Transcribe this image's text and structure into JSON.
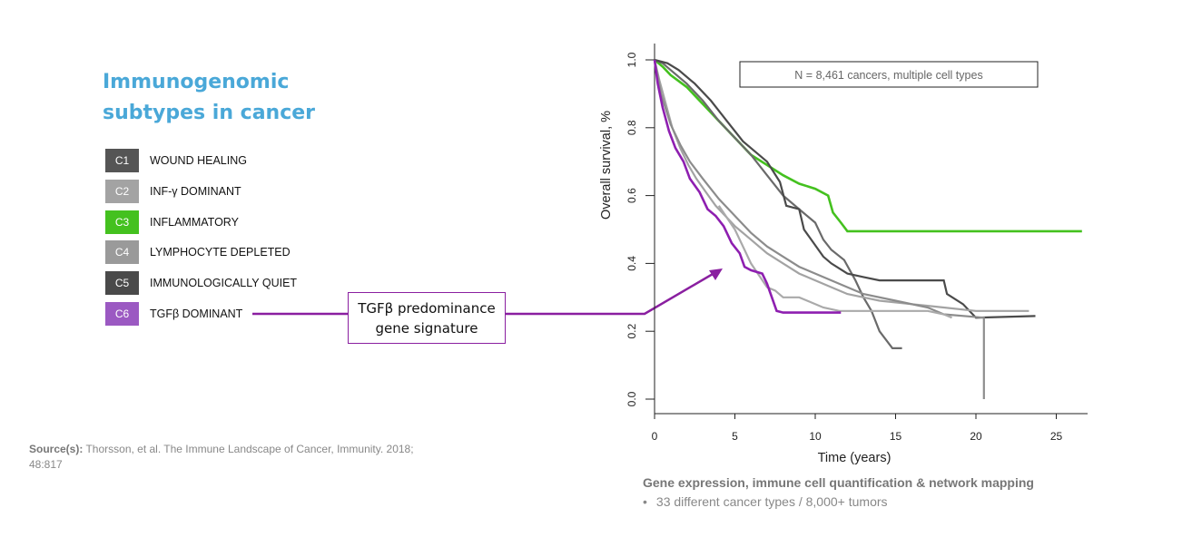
{
  "title": {
    "line1": "Immunogenomic",
    "line2": "subtypes in cancer"
  },
  "legend": [
    {
      "code": "C1",
      "label": "WOUND HEALING",
      "color": "#555555"
    },
    {
      "code": "C2",
      "label": "INF-γ DOMINANT",
      "color": "#a3a3a3"
    },
    {
      "code": "C3",
      "label": "INFLAMMATORY",
      "color": "#44c11f"
    },
    {
      "code": "C4",
      "label": "LYMPHOCYTE DEPLETED",
      "color": "#9a9a9a"
    },
    {
      "code": "C5",
      "label": "IMMUNOLOGICALLY QUIET",
      "color": "#4a4a4a"
    },
    {
      "code": "C6",
      "label": "TGFβ DOMINANT",
      "color": "#9b59c2"
    }
  ],
  "source": {
    "label": "Source(s):",
    "text": "Thorsson, et al. The Immune Landscape of Cancer, Immunity. 2018; 48:817"
  },
  "callout": {
    "line1": "TGFβ predominance",
    "line2": "gene signature",
    "color": "#8a1fa0"
  },
  "footer": {
    "heading": "Gene expression, immune cell quantification & network mapping",
    "bullet": "33 different cancer types / 8,000+ tumors"
  },
  "chart_data": {
    "type": "line",
    "title": "",
    "annotation": "N = 8,461 cancers, multiple cell types",
    "xlabel": "Time (years)",
    "ylabel": "Overall survival, %",
    "xlim": [
      0,
      27
    ],
    "ylim": [
      0,
      1.0
    ],
    "xticks": [
      "0",
      "5",
      "10",
      "15",
      "20",
      "25"
    ],
    "yticks": [
      "0.0",
      "0.2",
      "0.4",
      "0.6",
      "0.8",
      "1.0"
    ],
    "grid": false,
    "series": [
      {
        "name": "C3",
        "color": "#44c11f",
        "step": false,
        "points": [
          [
            0,
            1.0
          ],
          [
            0.5,
            0.98
          ],
          [
            1,
            0.955
          ],
          [
            2,
            0.92
          ],
          [
            3,
            0.87
          ],
          [
            4,
            0.82
          ],
          [
            5,
            0.77
          ],
          [
            6,
            0.72
          ],
          [
            7,
            0.69
          ],
          [
            8,
            0.66
          ],
          [
            9,
            0.635
          ],
          [
            10,
            0.62
          ],
          [
            10.8,
            0.6
          ],
          [
            11.1,
            0.55
          ],
          [
            11.6,
            0.52
          ],
          [
            12,
            0.495
          ],
          [
            26.6,
            0.495
          ]
        ]
      },
      {
        "name": "C1",
        "color": "#6a6a6a",
        "step": false,
        "points": [
          [
            0,
            1.0
          ],
          [
            0.5,
            0.99
          ],
          [
            1,
            0.97
          ],
          [
            2,
            0.93
          ],
          [
            3,
            0.88
          ],
          [
            4,
            0.82
          ],
          [
            5,
            0.77
          ],
          [
            6,
            0.72
          ],
          [
            7,
            0.66
          ],
          [
            8,
            0.6
          ],
          [
            9,
            0.56
          ],
          [
            10,
            0.52
          ],
          [
            10.5,
            0.47
          ],
          [
            11,
            0.44
          ],
          [
            11.8,
            0.41
          ],
          [
            12.5,
            0.35
          ],
          [
            13,
            0.3
          ],
          [
            13.5,
            0.26
          ],
          [
            14,
            0.2
          ],
          [
            14.8,
            0.15
          ],
          [
            15.4,
            0.15
          ]
        ]
      },
      {
        "name": "C5",
        "color": "#4a4a4a",
        "step": false,
        "points": [
          [
            0,
            1.0
          ],
          [
            0.8,
            0.99
          ],
          [
            1.5,
            0.97
          ],
          [
            2.5,
            0.93
          ],
          [
            3.5,
            0.88
          ],
          [
            4.5,
            0.82
          ],
          [
            5.5,
            0.76
          ],
          [
            6.5,
            0.72
          ],
          [
            7,
            0.7
          ],
          [
            7.8,
            0.64
          ],
          [
            8.2,
            0.57
          ],
          [
            9,
            0.56
          ],
          [
            9.3,
            0.5
          ],
          [
            10.5,
            0.42
          ],
          [
            11,
            0.4
          ],
          [
            12,
            0.37
          ],
          [
            13,
            0.36
          ],
          [
            14,
            0.35
          ],
          [
            15,
            0.35
          ],
          [
            18,
            0.35
          ],
          [
            18.2,
            0.31
          ],
          [
            19.2,
            0.28
          ],
          [
            20,
            0.24
          ],
          [
            23.7,
            0.245
          ]
        ]
      },
      {
        "name": "C2",
        "color": "#a3a3a3",
        "step": false,
        "points": [
          [
            0,
            1.0
          ],
          [
            0.3,
            0.94
          ],
          [
            0.7,
            0.87
          ],
          [
            1.1,
            0.8
          ],
          [
            1.6,
            0.74
          ],
          [
            2.1,
            0.69
          ],
          [
            2.6,
            0.65
          ],
          [
            3.2,
            0.61
          ],
          [
            3.8,
            0.57
          ],
          [
            4.4,
            0.54
          ],
          [
            5,
            0.51
          ],
          [
            6,
            0.47
          ],
          [
            7,
            0.43
          ],
          [
            8,
            0.4
          ],
          [
            9,
            0.37
          ],
          [
            10,
            0.35
          ],
          [
            11,
            0.33
          ],
          [
            12,
            0.31
          ],
          [
            13,
            0.3
          ],
          [
            14,
            0.29
          ],
          [
            16,
            0.28
          ],
          [
            18,
            0.27
          ],
          [
            20,
            0.26
          ],
          [
            23.3,
            0.26
          ]
        ]
      },
      {
        "name": "C4",
        "color": "#8c8c8c",
        "step": false,
        "points": [
          [
            0,
            1.0
          ],
          [
            0.4,
            0.9
          ],
          [
            1,
            0.81
          ],
          [
            1.6,
            0.75
          ],
          [
            2.2,
            0.7
          ],
          [
            3,
            0.65
          ],
          [
            4,
            0.59
          ],
          [
            5,
            0.54
          ],
          [
            6,
            0.49
          ],
          [
            7,
            0.45
          ],
          [
            8,
            0.42
          ],
          [
            9,
            0.39
          ],
          [
            10,
            0.37
          ],
          [
            11,
            0.35
          ],
          [
            12,
            0.33
          ],
          [
            13,
            0.31
          ],
          [
            15,
            0.29
          ],
          [
            17,
            0.27
          ],
          [
            18,
            0.25
          ],
          [
            20.5,
            0.24
          ],
          [
            20.5,
            0.0
          ]
        ]
      },
      {
        "name": "C4b",
        "color": "#aaaaaa",
        "step": false,
        "points": [
          [
            4,
            0.57
          ],
          [
            5,
            0.5
          ],
          [
            6,
            0.4
          ],
          [
            7,
            0.33
          ],
          [
            7.5,
            0.32
          ],
          [
            8,
            0.3
          ],
          [
            9,
            0.3
          ],
          [
            9.5,
            0.29
          ],
          [
            10.5,
            0.27
          ],
          [
            11.5,
            0.26
          ],
          [
            12.5,
            0.26
          ],
          [
            17,
            0.26
          ],
          [
            18,
            0.25
          ],
          [
            18.5,
            0.24
          ]
        ]
      },
      {
        "name": "C6",
        "color": "#8e1fb0",
        "step": false,
        "points": [
          [
            0,
            1.0
          ],
          [
            0.2,
            0.93
          ],
          [
            0.5,
            0.86
          ],
          [
            0.9,
            0.79
          ],
          [
            1.3,
            0.74
          ],
          [
            1.8,
            0.7
          ],
          [
            2.2,
            0.65
          ],
          [
            2.8,
            0.61
          ],
          [
            3.3,
            0.56
          ],
          [
            3.8,
            0.54
          ],
          [
            4.3,
            0.51
          ],
          [
            4.8,
            0.46
          ],
          [
            5.3,
            0.43
          ],
          [
            5.6,
            0.39
          ],
          [
            6,
            0.38
          ],
          [
            6.7,
            0.37
          ],
          [
            7,
            0.34
          ],
          [
            7.3,
            0.3
          ],
          [
            7.6,
            0.26
          ],
          [
            8,
            0.255
          ],
          [
            11.6,
            0.255
          ]
        ]
      }
    ]
  }
}
